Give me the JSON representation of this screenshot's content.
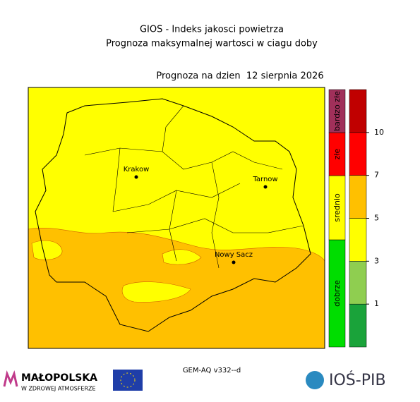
{
  "header": {
    "title": "GIOS - Indeks jakosci powietrza",
    "subtitle": "Prognoza maksymalnej wartosci w ciagu doby",
    "date_label": "Prognoza na dzien  12 sierpnia 2026"
  },
  "map": {
    "cities": [
      {
        "name": "Krakow"
      },
      {
        "name": "Tarnow"
      },
      {
        "name": "Nowy Sacz"
      }
    ]
  },
  "categories": [
    {
      "label": "dobrze",
      "color": "#00dd00"
    },
    {
      "label": "srednio",
      "color": "#ffff00"
    },
    {
      "label": "złe",
      "color": "#ff0000"
    },
    {
      "label": "bardzo złe",
      "color": "#a0305a"
    }
  ],
  "colorbar": {
    "colors": [
      "#1aa33a",
      "#8fce50",
      "#ffff00",
      "#ffc000",
      "#ff0000",
      "#c00000"
    ],
    "ticks": [
      1,
      3,
      5,
      7,
      10
    ]
  },
  "footer": {
    "model": "GEM-AQ v332--d",
    "logo_left": "MAŁOPOLSKA",
    "logo_left_sub": "W ZDROWEJ ATMOSFERZE",
    "logo_right": "IOŚ-PIB"
  }
}
